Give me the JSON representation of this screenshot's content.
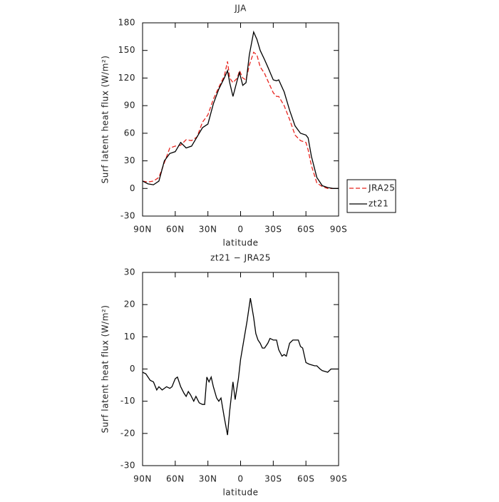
{
  "chart_data": [
    {
      "type": "line",
      "title": "JJA",
      "xlabel": "latitude",
      "ylabel": "Surf latent heat flux (W/m²)",
      "x": [
        90,
        85,
        80,
        75,
        70,
        65,
        60,
        55,
        50,
        45,
        40,
        35,
        30,
        25,
        20,
        15,
        12,
        10,
        7,
        3,
        1,
        -2,
        -5,
        -8,
        -12,
        -15,
        -18,
        -22,
        -25,
        -30,
        -33,
        -35,
        -40,
        -45,
        -50,
        -55,
        -60,
        -62,
        -65,
        -70,
        -75,
        -80,
        -85,
        -90
      ],
      "series": [
        {
          "name": "JRA25",
          "color": "#e8251f",
          "dashed": true,
          "values": [
            8,
            7,
            8,
            12,
            28,
            44,
            46,
            47,
            53,
            52,
            56,
            72,
            80,
            97,
            110,
            122,
            138,
            120,
            115,
            120,
            128,
            120,
            118,
            134,
            148,
            145,
            132,
            125,
            117,
            104,
            100,
            100,
            90,
            75,
            58,
            52,
            50,
            42,
            25,
            6,
            2,
            0,
            0,
            0
          ]
        },
        {
          "name": "zt21",
          "color": "#000000",
          "dashed": false,
          "values": [
            8,
            5,
            4,
            8,
            30,
            38,
            40,
            50,
            44,
            46,
            56,
            66,
            70,
            92,
            108,
            120,
            128,
            115,
            100,
            118,
            126,
            112,
            115,
            145,
            170,
            162,
            150,
            140,
            132,
            118,
            117,
            118,
            105,
            85,
            68,
            60,
            58,
            55,
            35,
            12,
            3,
            1,
            0,
            0
          ]
        }
      ],
      "xlim": [
        90,
        -90
      ],
      "xticks": [
        {
          "value": 90,
          "label": "90N"
        },
        {
          "value": 60,
          "label": "60N"
        },
        {
          "value": 30,
          "label": "30N"
        },
        0,
        {
          "value": -30,
          "label": "30S"
        },
        {
          "value": -60,
          "label": "60S"
        },
        {
          "value": -90,
          "label": "90S"
        }
      ],
      "ylim": [
        -30,
        180
      ],
      "yticks": [
        -30,
        0,
        30,
        60,
        90,
        120,
        150,
        180
      ],
      "legend": "right"
    },
    {
      "type": "line",
      "title": "zt21 − JRA25",
      "xlabel": "latitude",
      "ylabel": "Surf latent heat flux (W/m²)",
      "x": [
        90,
        87,
        83,
        80,
        77,
        75,
        72,
        70,
        68,
        65,
        63,
        60,
        58,
        55,
        52,
        50,
        48,
        46,
        43,
        41,
        38,
        35,
        33,
        31,
        29,
        27,
        25,
        22,
        20,
        18,
        15,
        12,
        10,
        7,
        5,
        2,
        0,
        -3,
        -6,
        -9,
        -12,
        -14,
        -16,
        -18,
        -20,
        -22,
        -25,
        -27,
        -30,
        -33,
        -35,
        -38,
        -40,
        -42,
        -45,
        -48,
        -50,
        -53,
        -55,
        -57,
        -60,
        -63,
        -68,
        -70,
        -73,
        -75,
        -80,
        -83,
        -90
      ],
      "series": [
        {
          "color": "#000000",
          "dashed": false,
          "values": [
            -1,
            -1.5,
            -3.5,
            -4,
            -6.5,
            -5.5,
            -6.5,
            -6,
            -5.5,
            -6,
            -5.5,
            -3,
            -2.5,
            -5.5,
            -7.5,
            -8.5,
            -7,
            -8,
            -10,
            -8.5,
            -10.5,
            -11,
            -11,
            -2.5,
            -4,
            -2.5,
            -5.5,
            -9,
            -10,
            -9,
            -15,
            -20.5,
            -13,
            -4,
            -9.5,
            -3,
            3,
            9,
            15,
            22,
            16,
            11,
            9,
            8,
            6.5,
            6.5,
            8,
            9.5,
            9,
            9,
            6,
            4,
            4.5,
            4,
            8,
            9,
            9,
            9,
            7,
            6.5,
            2,
            1.5,
            1,
            1,
            0,
            -0.5,
            -1,
            0,
            0
          ]
        }
      ],
      "xlim": [
        90,
        -90
      ],
      "xticks": [
        {
          "value": 90,
          "label": "90N"
        },
        {
          "value": 60,
          "label": "60N"
        },
        {
          "value": 30,
          "label": "30N"
        },
        0,
        {
          "value": -30,
          "label": "30S"
        },
        {
          "value": -60,
          "label": "60S"
        },
        {
          "value": -90,
          "label": "90S"
        }
      ],
      "ylim": [
        -30,
        30
      ],
      "yticks": [
        -30,
        -20,
        -10,
        0,
        10,
        20,
        30
      ]
    }
  ]
}
